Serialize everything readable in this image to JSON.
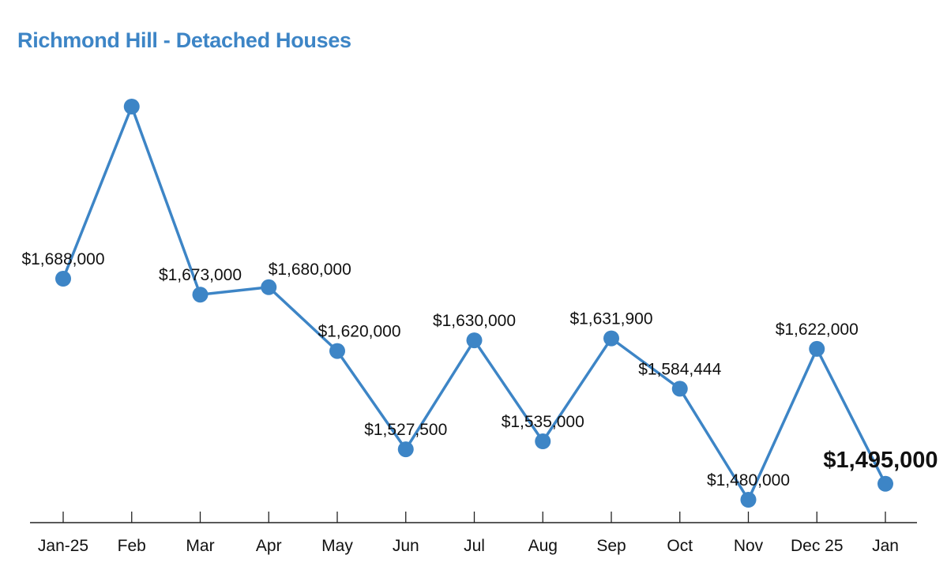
{
  "colors": {
    "title": "#3d85c6",
    "line": "#3d85c6",
    "point": "#3d85c6",
    "axis": "#222222",
    "highlight_label": "#e0463a"
  },
  "chart_data": {
    "type": "line",
    "title": "Richmond Hill - Detached Houses",
    "xlabel": "",
    "ylabel": "",
    "grid": false,
    "categories": [
      "Jan-25",
      "Feb",
      "Mar",
      "Apr",
      "May",
      "Jun",
      "Jul",
      "Aug",
      "Sep",
      "Oct",
      "Nov",
      "Dec 25",
      "Jan"
    ],
    "series": [
      {
        "name": "Richmond Hill - Detached Houses",
        "values": [
          1688000,
          1850000,
          1673000,
          1680000,
          1620000,
          1527500,
          1630000,
          1535000,
          1631900,
          1584444,
          1480000,
          1622000,
          1495000
        ],
        "labels": [
          "$1,688,000",
          "",
          "$1,673,000",
          "$1,680,000",
          "$1,620,000",
          "$1,527,500",
          "$1,630,000",
          "$1,535,000",
          "$1,631,900",
          "$1,584,444",
          "$1,480,000",
          "$1,622,000",
          "$1,495,000"
        ],
        "highlight_index": 12
      }
    ],
    "ylim": [
      1460000,
      1870000
    ]
  }
}
